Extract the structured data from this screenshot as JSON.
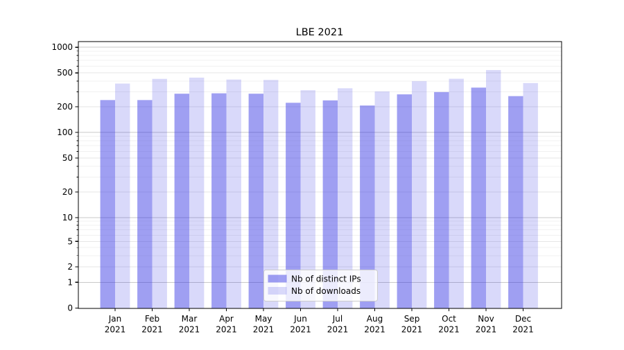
{
  "title": "LBE 2021",
  "chart_data": {
    "type": "bar",
    "title": "LBE 2021",
    "categories": [
      "Jan 2021",
      "Feb 2021",
      "Mar 2021",
      "Apr 2021",
      "May 2021",
      "Jun 2021",
      "Jul 2021",
      "Aug 2021",
      "Sep 2021",
      "Oct 2021",
      "Nov 2021",
      "Dec 2021"
    ],
    "x_tick_months": [
      "Jan",
      "Feb",
      "Mar",
      "Apr",
      "May",
      "Jun",
      "Jul",
      "Aug",
      "Sep",
      "Oct",
      "Nov",
      "Dec"
    ],
    "x_tick_year": "2021",
    "series": [
      {
        "name": "Nb of distinct IPs",
        "color": "rgba(55,55,228,0.48)",
        "values": [
          240,
          240,
          285,
          288,
          285,
          223,
          238,
          207,
          280,
          298,
          336,
          267
        ]
      },
      {
        "name": "Nb of downloads",
        "color": "rgba(55,55,228,0.19)",
        "values": [
          375,
          426,
          440,
          418,
          413,
          313,
          330,
          303,
          400,
          427,
          540,
          380
        ]
      }
    ],
    "y_axis": {
      "scale": "symlog",
      "ticks": [
        0,
        1,
        2,
        5,
        10,
        20,
        50,
        100,
        200,
        500,
        1000
      ],
      "minor_tick_mantissas": [
        3,
        4,
        6,
        7,
        8,
        9
      ],
      "range": [
        0,
        1150
      ]
    },
    "grid": {
      "on": true,
      "decade_color": "#c8c8c8",
      "labeled_color": "#e6e6e6",
      "minor_color": "#f1f1f1"
    },
    "legend": {
      "position": "lower-center",
      "items": [
        "Nb of distinct IPs",
        "Nb of downloads"
      ],
      "background": "rgba(255,255,255,0.8)",
      "border_color": "#cccccc"
    },
    "colors": {
      "bar_dark": "#9f9ff2",
      "bar_light": "#d9d9fa",
      "spine": "#000000"
    }
  }
}
